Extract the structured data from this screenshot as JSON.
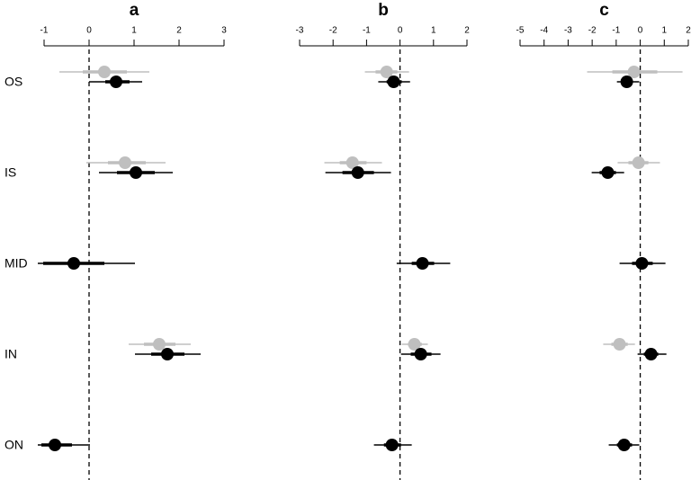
{
  "chart_data": [
    {
      "type": "forest",
      "title": "a",
      "categories": [
        "OS",
        "IS",
        "MID",
        "IN",
        "ON"
      ],
      "xlim": [
        -1,
        3
      ],
      "xticks": [
        -1,
        0,
        1,
        2,
        3
      ],
      "vline": 0,
      "series": [
        {
          "color": "#bfbfbf",
          "values": [
            0.34,
            0.8,
            null,
            1.56,
            null
          ],
          "lower": [
            -0.66,
            -0.06,
            null,
            0.88,
            null
          ],
          "upper": [
            1.34,
            1.7,
            null,
            2.26,
            null
          ],
          "lower50": [
            -0.14,
            0.42,
            null,
            1.22,
            null
          ],
          "upper50": [
            0.84,
            1.26,
            null,
            1.92,
            null
          ]
        },
        {
          "color": "#000000",
          "values": [
            0.6,
            1.04,
            -0.34,
            1.74,
            -0.76
          ],
          "lower": [
            0,
            0.22,
            -1.14,
            1.02,
            -1.14
          ],
          "upper": [
            1.18,
            1.86,
            1.02,
            2.48,
            0.02
          ],
          "lower50": [
            0.36,
            0.62,
            -1.02,
            1.38,
            -1.06
          ],
          "upper50": [
            0.9,
            1.46,
            0.34,
            2.12,
            -0.38
          ]
        }
      ]
    },
    {
      "type": "forest",
      "title": "b",
      "xlim": [
        -3,
        2
      ],
      "xticks": [
        -3,
        -2,
        -1,
        0,
        1,
        2
      ],
      "vline": 0,
      "series": [
        {
          "color": "#bfbfbf",
          "values": [
            -0.4,
            -1.42,
            null,
            0.43,
            null
          ],
          "lower": [
            -1.05,
            -2.26,
            null,
            0.05,
            null
          ],
          "upper": [
            0.27,
            -0.54,
            null,
            0.83,
            null
          ],
          "lower50": [
            -0.73,
            -1.8,
            null,
            0.24,
            null
          ],
          "upper50": [
            -0.08,
            -1.0,
            null,
            0.65,
            null
          ]
        },
        {
          "color": "#000000",
          "values": [
            -0.19,
            -1.26,
            0.67,
            0.62,
            -0.24
          ],
          "lower": [
            -0.65,
            -2.23,
            -0.1,
            0.03,
            -0.78
          ],
          "upper": [
            0.3,
            -0.27,
            1.5,
            1.21,
            0.35
          ],
          "lower50": [
            -0.4,
            -1.72,
            0.35,
            0.32,
            -0.48
          ],
          "upper50": [
            0.05,
            -0.78,
            1.02,
            0.94,
            0.03
          ]
        }
      ]
    },
    {
      "type": "forest",
      "title": "c",
      "xlim": [
        -5,
        2
      ],
      "xticks": [
        -5,
        -4,
        -3,
        -2,
        -1,
        0,
        1,
        2
      ],
      "vline": 0,
      "series": [
        {
          "color": "#bfbfbf",
          "values": [
            -0.26,
            -0.07,
            null,
            -0.86,
            null
          ],
          "lower": [
            -2.21,
            -0.94,
            null,
            -1.54,
            null
          ],
          "upper": [
            1.76,
            0.82,
            null,
            -0.22,
            null
          ],
          "lower50": [
            -1.16,
            -0.49,
            null,
            -1.2,
            null
          ],
          "upper50": [
            0.71,
            0.34,
            null,
            -0.52,
            null
          ]
        },
        {
          "color": "#000000",
          "values": [
            -0.56,
            -1.35,
            0.07,
            0.45,
            -0.67
          ],
          "lower": [
            -0.97,
            -2.02,
            -0.86,
            -0.11,
            -1.31
          ],
          "upper": [
            -0.04,
            -0.67,
            1.05,
            1.09,
            -0.04
          ],
          "lower50": [
            -0.79,
            -1.69,
            -0.34,
            0.15,
            -0.97
          ],
          "upper50": [
            -0.34,
            -1.01,
            0.52,
            0.75,
            -0.34
          ]
        }
      ]
    }
  ]
}
